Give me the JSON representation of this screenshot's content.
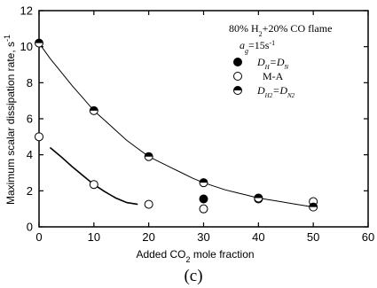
{
  "chart_data": {
    "type": "scatter",
    "title": "",
    "xlabel": "Added CO2 mole fraction",
    "xlabel_main": "Added CO",
    "xlabel_sub": "2",
    "xlabel_tail": " mole fraction",
    "ylabel": "Maximum scalar dissipation rate, s-1",
    "ylabel_main": "Maximum scalar dissipation rate, s",
    "ylabel_sup": "-1",
    "xlim": [
      0,
      60
    ],
    "ylim": [
      0,
      12
    ],
    "xticks": [
      0,
      10,
      20,
      30,
      40,
      50,
      60
    ],
    "yticks": [
      0,
      2,
      4,
      6,
      8,
      10,
      12
    ],
    "grid": false,
    "legend_position": "top-right",
    "annotation_line1_pre": "80% H",
    "annotation_line1_sub": "2",
    "annotation_line1_post": "+20% CO flame",
    "annotation_line2_pre": "a",
    "annotation_line2_sub": "g",
    "annotation_line2_post": "=15s",
    "annotation_line2_sup": "-1",
    "panel_label": "(c)",
    "series": [
      {
        "legend_main": "D",
        "legend_sub1": "H",
        "legend_mid": "=D",
        "legend_sub2": "N",
        "marker": "filled-circle",
        "x": [
          30
        ],
        "y": [
          1.55
        ]
      },
      {
        "name": "M-A",
        "legend_main": "M-A",
        "marker": "open-circle",
        "x": [
          0,
          10,
          20,
          30,
          40,
          50
        ],
        "y": [
          5.0,
          2.35,
          1.25,
          1.0,
          1.55,
          1.4
        ]
      },
      {
        "legend_main": "D",
        "legend_sub1": "H2",
        "legend_mid": "=D",
        "legend_sub2": "N2",
        "marker": "half-filled-circle",
        "x": [
          0,
          10,
          20,
          30,
          40,
          50
        ],
        "y": [
          10.2,
          6.45,
          3.9,
          2.45,
          1.6,
          1.1
        ]
      }
    ],
    "fit_curves": [
      {
        "style": "solid",
        "x": [
          0,
          2,
          4,
          6,
          8,
          10,
          12,
          14,
          16,
          18,
          20,
          22,
          24,
          26,
          28,
          30,
          32,
          34,
          36,
          38,
          40,
          42,
          44,
          46,
          48,
          50
        ],
        "y": [
          10.2,
          9.35,
          8.6,
          7.85,
          7.15,
          6.45,
          5.9,
          5.35,
          4.8,
          4.35,
          3.9,
          3.6,
          3.3,
          3.0,
          2.7,
          2.45,
          2.25,
          2.05,
          1.9,
          1.75,
          1.6,
          1.5,
          1.4,
          1.3,
          1.2,
          1.1
        ]
      },
      {
        "style": "solid",
        "x": [
          2,
          4,
          6,
          8,
          10,
          12,
          14,
          16,
          18
        ],
        "y": [
          4.4,
          3.9,
          3.35,
          2.85,
          2.35,
          1.95,
          1.6,
          1.35,
          1.25
        ]
      }
    ]
  }
}
